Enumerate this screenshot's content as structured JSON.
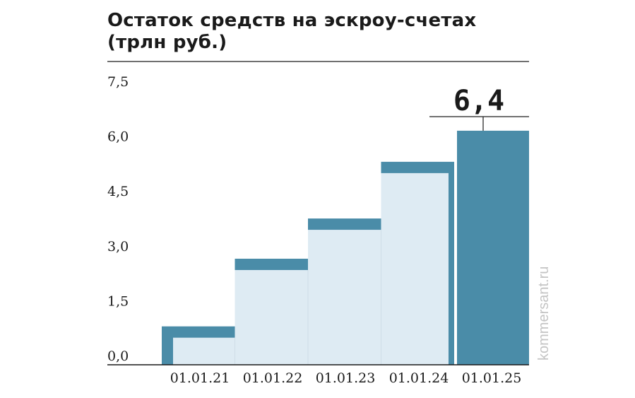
{
  "chart_data": {
    "type": "area",
    "title_lines": [
      "Остаток средств на эскроу-счетах",
      "(трлн руб.)"
    ],
    "categories": [
      "01.01.21",
      "01.01.22",
      "01.01.23",
      "01.01.24",
      "01.01.25"
    ],
    "values": [
      1.05,
      2.9,
      4.0,
      5.55,
      6.4
    ],
    "y_ticks": [
      "0,0",
      "1,5",
      "3,0",
      "4,5",
      "6,0",
      "7,5"
    ],
    "ylim": [
      0,
      7.5
    ],
    "highlight": {
      "index": 4,
      "label": "6,4"
    },
    "colors": {
      "outline": "#4a8ca8",
      "fill_light": "#deebf3",
      "fill_highlight": "#4a8ca8",
      "axis": "#1a1a1a",
      "separator": "#cfdde7"
    },
    "grid": false,
    "legend": "none"
  },
  "watermark": "kommersant.ru"
}
